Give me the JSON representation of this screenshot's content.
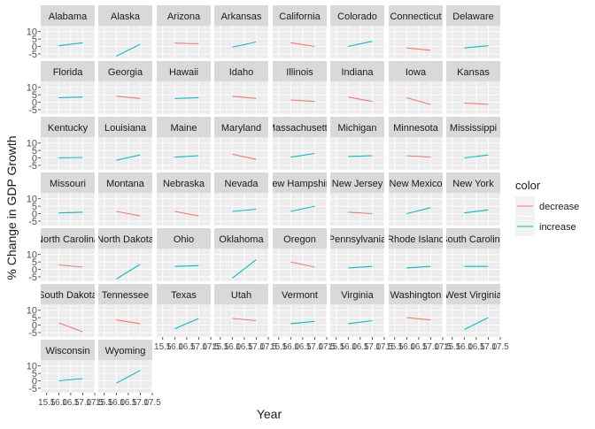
{
  "chart_data": {
    "type": "line",
    "xlabel": "Year",
    "ylabel": "% Change in GDP Growth",
    "xlim": [
      15.25,
      17.5
    ],
    "ylim": [
      -8,
      14
    ],
    "x_ticks": [
      15.5,
      16.0,
      16.5,
      17.0,
      17.5
    ],
    "x_tick_labels": [
      "15.5",
      "16.0",
      "16.5",
      "17.0",
      "17.5"
    ],
    "y_ticks": [
      -5,
      0,
      5,
      10
    ],
    "y_tick_labels": [
      "-5",
      "0",
      "5",
      "10"
    ],
    "grid": true,
    "facet_columns": 8,
    "legend": {
      "title": "color",
      "position": "right",
      "entries": [
        {
          "label": "decrease",
          "color": "#F8766D"
        },
        {
          "label": "increase",
          "color": "#00BFC4"
        }
      ]
    },
    "facets": [
      {
        "state": "Alabama",
        "label": "Alabama",
        "color": "increase",
        "x": [
          16.0,
          17.0
        ],
        "y": [
          0.5,
          2.5
        ]
      },
      {
        "state": "Alaska",
        "label": "Alaska",
        "color": "increase",
        "x": [
          16.0,
          17.0
        ],
        "y": [
          -6.5,
          1.5
        ]
      },
      {
        "state": "Arizona",
        "label": "Arizona",
        "color": "decrease",
        "x": [
          16.0,
          17.0
        ],
        "y": [
          2.3,
          1.8
        ]
      },
      {
        "state": "Arkansas",
        "label": "Arkansas",
        "color": "increase",
        "x": [
          16.0,
          17.0
        ],
        "y": [
          -0.5,
          3.0
        ]
      },
      {
        "state": "California",
        "label": "California",
        "color": "decrease",
        "x": [
          16.0,
          17.0
        ],
        "y": [
          2.5,
          0.0
        ]
      },
      {
        "state": "Colorado",
        "label": "Colorado",
        "color": "increase",
        "x": [
          16.0,
          17.0
        ],
        "y": [
          0.0,
          3.5
        ]
      },
      {
        "state": "Connecticut",
        "label": "Connecticut",
        "color": "decrease",
        "x": [
          16.0,
          17.0
        ],
        "y": [
          -1.0,
          -2.5
        ]
      },
      {
        "state": "Delaware",
        "label": "Delaware",
        "color": "increase",
        "x": [
          16.0,
          17.0
        ],
        "y": [
          -1.0,
          0.5
        ]
      },
      {
        "state": "Florida",
        "label": "Florida",
        "color": "increase",
        "x": [
          16.0,
          17.0
        ],
        "y": [
          3.0,
          3.5
        ]
      },
      {
        "state": "Georgia",
        "label": "Georgia",
        "color": "decrease",
        "x": [
          16.0,
          17.0
        ],
        "y": [
          4.0,
          2.5
        ]
      },
      {
        "state": "Hawaii",
        "label": "Hawaii",
        "color": "increase",
        "x": [
          16.0,
          17.0
        ],
        "y": [
          2.5,
          3.0
        ]
      },
      {
        "state": "Idaho",
        "label": "Idaho",
        "color": "decrease",
        "x": [
          16.0,
          17.0
        ],
        "y": [
          4.0,
          2.5
        ]
      },
      {
        "state": "Illinois",
        "label": "Illinois",
        "color": "decrease",
        "x": [
          16.0,
          17.0
        ],
        "y": [
          1.5,
          0.5
        ]
      },
      {
        "state": "Indiana",
        "label": "Indiana",
        "color": "decrease",
        "x": [
          16.0,
          17.0
        ],
        "y": [
          3.5,
          0.5
        ]
      },
      {
        "state": "Iowa",
        "label": "Iowa",
        "color": "decrease",
        "x": [
          16.0,
          17.0
        ],
        "y": [
          3.0,
          -1.5
        ]
      },
      {
        "state": "Kansas",
        "label": "Kansas",
        "color": "decrease",
        "x": [
          16.0,
          17.0
        ],
        "y": [
          -0.5,
          -1.5
        ]
      },
      {
        "state": "Kentucky",
        "label": "Kentucky",
        "color": "increase",
        "x": [
          16.0,
          17.0
        ],
        "y": [
          0.0,
          0.3
        ]
      },
      {
        "state": "Louisiana",
        "label": "Louisiana",
        "color": "increase",
        "x": [
          16.0,
          17.0
        ],
        "y": [
          -1.5,
          2.0
        ]
      },
      {
        "state": "Maine",
        "label": "Maine",
        "color": "increase",
        "x": [
          16.0,
          17.0
        ],
        "y": [
          0.5,
          1.5
        ]
      },
      {
        "state": "Maryland",
        "label": "Maryland",
        "color": "decrease",
        "x": [
          16.0,
          17.0
        ],
        "y": [
          2.5,
          -1.0
        ]
      },
      {
        "state": "Massachusetts",
        "label": "Massachusetts",
        "color": "increase",
        "x": [
          16.0,
          17.0
        ],
        "y": [
          0.5,
          3.0
        ]
      },
      {
        "state": "Michigan",
        "label": "Michigan",
        "color": "increase",
        "x": [
          16.0,
          17.0
        ],
        "y": [
          1.0,
          1.5
        ]
      },
      {
        "state": "Minnesota",
        "label": "Minnesota",
        "color": "decrease",
        "x": [
          16.0,
          17.0
        ],
        "y": [
          1.5,
          0.5
        ]
      },
      {
        "state": "Mississippi",
        "label": "Mississippi",
        "color": "increase",
        "x": [
          16.0,
          17.0
        ],
        "y": [
          0.0,
          2.0
        ]
      },
      {
        "state": "Missouri",
        "label": "Missouri",
        "color": "increase",
        "x": [
          16.0,
          17.0
        ],
        "y": [
          0.5,
          1.0
        ]
      },
      {
        "state": "Montana",
        "label": "Montana",
        "color": "decrease",
        "x": [
          16.0,
          17.0
        ],
        "y": [
          1.5,
          -1.5
        ]
      },
      {
        "state": "Nebraska",
        "label": "Nebraska",
        "color": "decrease",
        "x": [
          16.0,
          17.0
        ],
        "y": [
          1.5,
          -1.5
        ]
      },
      {
        "state": "Nevada",
        "label": "Nevada",
        "color": "increase",
        "x": [
          16.0,
          17.0
        ],
        "y": [
          1.5,
          3.0
        ]
      },
      {
        "state": "New Hampshire",
        "label": "New Hampshire",
        "color": "increase",
        "x": [
          16.0,
          17.0
        ],
        "y": [
          1.5,
          5.0
        ]
      },
      {
        "state": "New Jersey",
        "label": "New Jersey",
        "color": "decrease",
        "x": [
          16.0,
          17.0
        ],
        "y": [
          1.0,
          0.0
        ]
      },
      {
        "state": "New Mexico",
        "label": "New Mexico",
        "color": "increase",
        "x": [
          16.0,
          17.0
        ],
        "y": [
          0.0,
          4.0
        ]
      },
      {
        "state": "New York",
        "label": "New York",
        "color": "increase",
        "x": [
          16.0,
          17.0
        ],
        "y": [
          0.5,
          2.5
        ]
      },
      {
        "state": "North Carolina",
        "label": "North Carolina",
        "color": "decrease",
        "x": [
          16.0,
          17.0
        ],
        "y": [
          3.0,
          1.5
        ]
      },
      {
        "state": "North Dakota",
        "label": "North Dakota",
        "color": "increase",
        "x": [
          16.0,
          17.0
        ],
        "y": [
          -6.5,
          3.5
        ]
      },
      {
        "state": "Ohio",
        "label": "Ohio",
        "color": "increase",
        "x": [
          16.0,
          17.0
        ],
        "y": [
          2.0,
          2.5
        ]
      },
      {
        "state": "Oklahoma",
        "label": "Oklahoma",
        "color": "increase",
        "x": [
          16.0,
          17.0
        ],
        "y": [
          -6.0,
          6.5
        ]
      },
      {
        "state": "Oregon",
        "label": "Oregon",
        "color": "decrease",
        "x": [
          16.0,
          17.0
        ],
        "y": [
          5.0,
          1.5
        ]
      },
      {
        "state": "Pennsylvania",
        "label": "Pennsylvania",
        "color": "increase",
        "x": [
          16.0,
          17.0
        ],
        "y": [
          1.0,
          2.0
        ]
      },
      {
        "state": "Rhode Island",
        "label": "Rhode Island",
        "color": "increase",
        "x": [
          16.0,
          17.0
        ],
        "y": [
          1.0,
          2.0
        ]
      },
      {
        "state": "South Carolina",
        "label": "South Carolina",
        "color": "increase",
        "x": [
          16.0,
          17.0
        ],
        "y": [
          2.0,
          2.0
        ]
      },
      {
        "state": "South Dakota",
        "label": "South Dakota",
        "color": "decrease",
        "x": [
          16.0,
          17.0
        ],
        "y": [
          1.5,
          -4.5
        ]
      },
      {
        "state": "Tennessee",
        "label": "Tennessee",
        "color": "decrease",
        "x": [
          16.0,
          17.0
        ],
        "y": [
          3.5,
          1.0
        ]
      },
      {
        "state": "Texas",
        "label": "Texas",
        "color": "increase",
        "x": [
          16.0,
          17.0
        ],
        "y": [
          -2.5,
          4.5
        ]
      },
      {
        "state": "Utah",
        "label": "Utah",
        "color": "decrease",
        "x": [
          16.0,
          17.0
        ],
        "y": [
          4.5,
          3.0
        ]
      },
      {
        "state": "Vermont",
        "label": "Vermont",
        "color": "increase",
        "x": [
          16.0,
          17.0
        ],
        "y": [
          1.0,
          2.5
        ]
      },
      {
        "state": "Virginia",
        "label": "Virginia",
        "color": "increase",
        "x": [
          16.0,
          17.0
        ],
        "y": [
          1.0,
          3.0
        ]
      },
      {
        "state": "Washington",
        "label": "Washington",
        "color": "decrease",
        "x": [
          16.0,
          17.0
        ],
        "y": [
          5.0,
          3.5
        ]
      },
      {
        "state": "West Virginia",
        "label": "West Virginia",
        "color": "increase",
        "x": [
          16.0,
          17.0
        ],
        "y": [
          -3.0,
          5.0
        ]
      },
      {
        "state": "Wisconsin",
        "label": "Wisconsin",
        "color": "increase",
        "x": [
          16.0,
          17.0
        ],
        "y": [
          0.0,
          1.5
        ]
      },
      {
        "state": "Wyoming",
        "label": "Wyoming",
        "color": "increase",
        "x": [
          16.0,
          17.0
        ],
        "y": [
          -1.5,
          7.0
        ]
      }
    ]
  }
}
